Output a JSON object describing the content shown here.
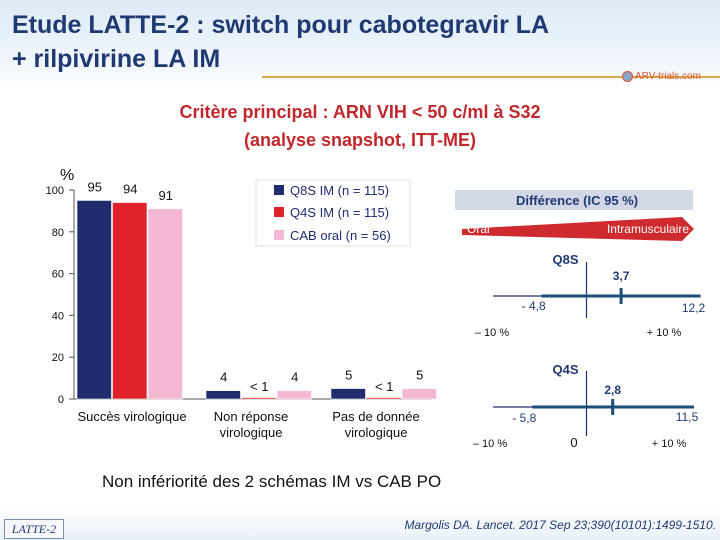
{
  "header": {
    "title_line1": "Etude LATTE-2 : switch pour cabotegravir LA",
    "title_line2": "+ rilpivirine LA IM",
    "logo_text": "ARV-trials.com"
  },
  "subtitle": {
    "line1": "Critère principal : ARN VIH < 50 c/ml à S32",
    "line2": "(analyse snapshot, ITT-ME)"
  },
  "chart_data": [
    {
      "type": "bar",
      "ylabel": "%",
      "ylim": [
        0,
        100
      ],
      "yticks": [
        "0",
        "20",
        "40",
        "60",
        "80",
        "100"
      ],
      "categories": [
        "Succès virologique",
        "Non réponse virologique",
        "Pas de donnée virologique"
      ],
      "series": [
        {
          "name": "Q8S IM (n = 115)",
          "values": [
            95,
            4,
            5
          ],
          "labels": [
            "95",
            "4",
            "5"
          ],
          "color": "#1f2d6e"
        },
        {
          "name": "Q4S IM (n = 115)",
          "values": [
            94,
            0.7,
            0.7
          ],
          "labels": [
            "94",
            "< 1",
            "< 1"
          ],
          "color": "#e0232b"
        },
        {
          "name": "CAB oral (n = 56)",
          "values": [
            91,
            4,
            5
          ],
          "labels": [
            "91",
            "4",
            "5"
          ],
          "color": "#f4b8d4"
        }
      ],
      "legend": "top-right"
    },
    {
      "type": "forest",
      "header": "Différence (IC 95 %)",
      "left_label": "Oral",
      "right_label": "Intramusculaire",
      "axis_min_label": "– 10 %",
      "axis_max_label": "+ 10 %",
      "axis_zero_label": "0",
      "xlim": [
        -10,
        10
      ],
      "rows": [
        {
          "name": "Q8S",
          "estimate": 3.7,
          "lower": -4.8,
          "upper": 12.2,
          "estimate_label": "3,7",
          "lower_label": "- 4,8",
          "upper_label": "12,2"
        },
        {
          "name": "Q4S",
          "estimate": 2.8,
          "lower": -5.8,
          "upper": 11.5,
          "estimate_label": "2,8",
          "lower_label": "- 5,8",
          "upper_label": "11,5"
        }
      ]
    }
  ],
  "conclusion": "Non infériorité des 2 schémas IM vs CAB PO",
  "footer": {
    "badge": "LATTE-2",
    "citation": "Margolis DA. Lancet. 2017 Sep 23;390(10101):1499-1510."
  },
  "colors": {
    "title": "#1f3a73",
    "subtitle": "#c0282d",
    "forest_header_bg": "#d2d8e6",
    "forest_bar": "#1e4d78"
  }
}
